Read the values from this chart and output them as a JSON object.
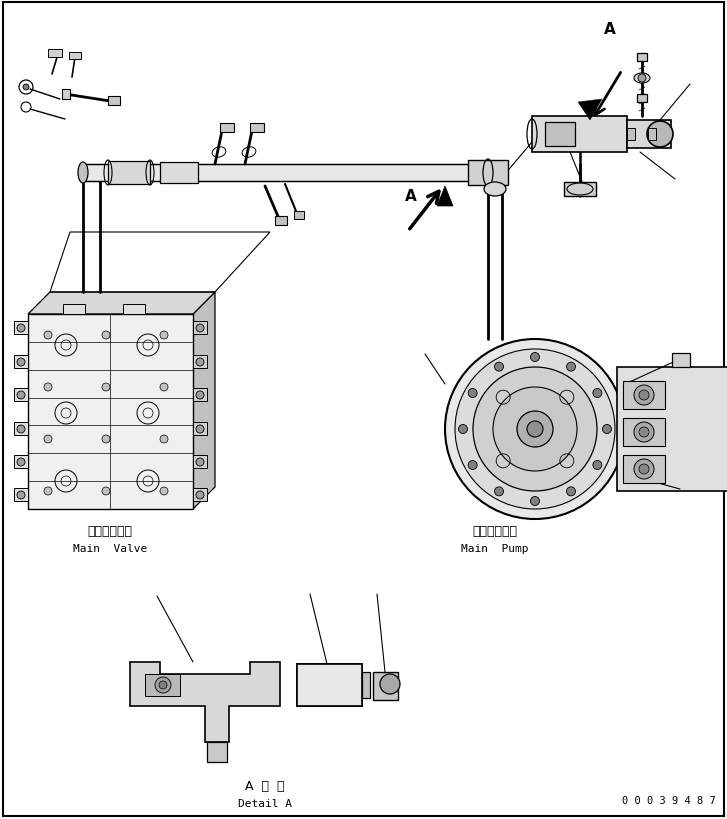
{
  "bg_color": "#ffffff",
  "line_color": "#000000",
  "main_valve_label_jp": "メインバルブ",
  "main_valve_label_en": "Main  Valve",
  "main_pump_label_jp": "メインポンプ",
  "main_pump_label_en": "Main  Pump",
  "detail_label_jp": "A  詳  細",
  "detail_label_en": "Detail A",
  "part_number": "0 0 0 3 9 4 8 7",
  "A_label": "A"
}
